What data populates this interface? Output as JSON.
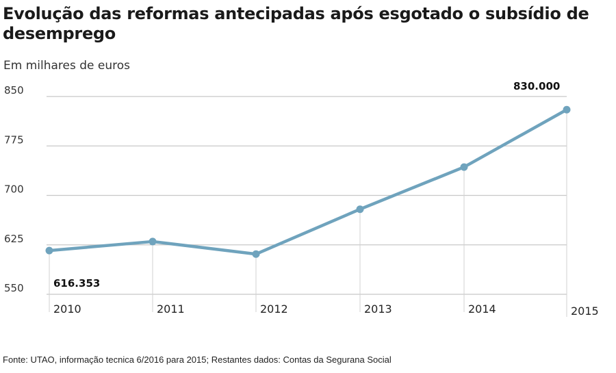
{
  "title": "Evolução das reformas antecipadas após esgotado o subsídio de desemprego",
  "subtitle": "Em milhares de euros",
  "source": "Fonte: UTAO, informação tecnica 6/2016 para 2015; Restantes dados: Contas da Segurana Social",
  "chart_data": {
    "type": "line",
    "x": [
      "2010",
      "2011",
      "2012",
      "2013",
      "2014",
      "2015"
    ],
    "series": [
      {
        "values": [
          616.353,
          630,
          611,
          679,
          743,
          830
        ]
      }
    ],
    "ylim": [
      550,
      850
    ],
    "yticks": [
      550,
      625,
      700,
      775,
      850
    ],
    "grid": "horizontal",
    "line_color": "#6fa3bd",
    "annotations": [
      {
        "index": 0,
        "text": "616.353"
      },
      {
        "index": 5,
        "text": "830.000"
      }
    ]
  }
}
